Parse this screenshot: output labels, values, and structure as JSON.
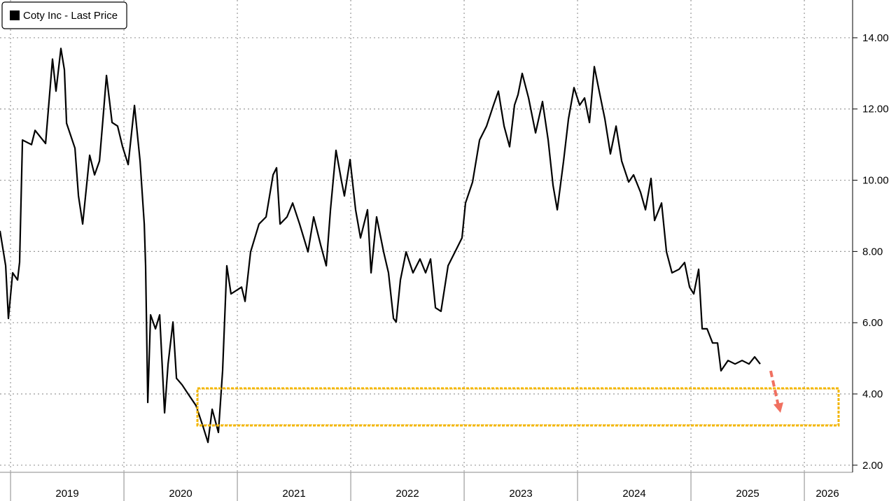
{
  "chart_data": {
    "type": "line",
    "series": [
      {
        "name": "Coty Inc - Last Price",
        "color": "#000000",
        "values": [
          8.58,
          7.6,
          6.12,
          7.4,
          7.2,
          7.7,
          11.13,
          11.0,
          11.4,
          11.03,
          13.4,
          12.5,
          13.7,
          13.1,
          11.6,
          10.9,
          9.56,
          8.77,
          10.7,
          10.15,
          10.54,
          11.72,
          12.94,
          11.62,
          11.52,
          10.94,
          10.44,
          12.1,
          10.54,
          8.77,
          7.6,
          3.76,
          6.22,
          5.83,
          6.22,
          3.47,
          4.84,
          6.02,
          4.44,
          4.26,
          3.96,
          3.67,
          3.08,
          2.64,
          3.57,
          2.92,
          4.65,
          7.6,
          6.81,
          7.0,
          6.6,
          7.99,
          8.77,
          8.97,
          10.15,
          10.35,
          8.77,
          8.97,
          9.36,
          8.77,
          7.99,
          8.97,
          8.18,
          7.6,
          9.17,
          10.84,
          9.95,
          9.56,
          10.58,
          9.17,
          8.38,
          9.17,
          7.4,
          8.97,
          7.99,
          7.4,
          6.12,
          6.02,
          7.2,
          7.99,
          7.4,
          7.79,
          7.4,
          7.79,
          6.42,
          6.32,
          7.6,
          7.99,
          8.38,
          9.36,
          9.95,
          11.13,
          11.52,
          12.11,
          12.5,
          11.52,
          10.94,
          12.11,
          12.4,
          13.0,
          12.31,
          11.33,
          12.21,
          11.13,
          9.85,
          9.17,
          10.54,
          11.72,
          12.6,
          12.11,
          12.31,
          11.62,
          13.19,
          12.5,
          11.72,
          10.74,
          11.52,
          10.54,
          9.95,
          10.15,
          9.66,
          9.17,
          10.05,
          8.87,
          9.36,
          7.99,
          7.4,
          7.5,
          7.69,
          7.0,
          6.81,
          7.5,
          5.83,
          5.83,
          5.43,
          5.43,
          4.65,
          4.94,
          4.84,
          4.94,
          4.84,
          5.04,
          4.84
        ]
      }
    ],
    "x": [
      2018.907,
      2018.957,
      2018.981,
      2019.019,
      2019.062,
      2019.08,
      2019.105,
      2019.185,
      2019.216,
      2019.309,
      2019.37,
      2019.401,
      2019.444,
      2019.475,
      2019.494,
      2019.568,
      2019.599,
      2019.636,
      2019.698,
      2019.741,
      2019.784,
      2019.815,
      2019.846,
      2019.895,
      2019.944,
      2019.988,
      2020.037,
      2020.093,
      2020.142,
      2020.179,
      2020.191,
      2020.21,
      2020.235,
      2020.278,
      2020.315,
      2020.358,
      2020.389,
      2020.432,
      2020.463,
      2020.512,
      2020.574,
      2020.636,
      2020.698,
      2020.741,
      2020.778,
      2020.833,
      2020.87,
      2020.907,
      2020.944,
      2021.037,
      2021.068,
      2021.117,
      2021.191,
      2021.253,
      2021.315,
      2021.346,
      2021.377,
      2021.438,
      2021.488,
      2021.549,
      2021.623,
      2021.673,
      2021.735,
      2021.784,
      2021.821,
      2021.87,
      2021.92,
      2021.944,
      2021.994,
      2022.043,
      2022.086,
      2022.148,
      2022.179,
      2022.228,
      2022.29,
      2022.333,
      2022.377,
      2022.401,
      2022.438,
      2022.488,
      2022.549,
      2022.611,
      2022.66,
      2022.704,
      2022.747,
      2022.796,
      2022.858,
      2022.92,
      2022.981,
      2023.012,
      2023.074,
      2023.136,
      2023.198,
      2023.259,
      2023.302,
      2023.352,
      2023.401,
      2023.444,
      2023.475,
      2023.512,
      2023.568,
      2023.63,
      2023.691,
      2023.741,
      2023.784,
      2023.821,
      2023.877,
      2023.92,
      2023.969,
      2024.019,
      2024.062,
      2024.105,
      2024.148,
      2024.191,
      2024.241,
      2024.29,
      2024.34,
      2024.389,
      2024.451,
      2024.494,
      2024.556,
      2024.599,
      2024.648,
      2024.679,
      2024.741,
      2024.784,
      2024.833,
      2024.895,
      2024.944,
      2024.988,
      2025.025,
      2025.068,
      2025.099,
      2025.142,
      2025.191,
      2025.235,
      2025.265,
      2025.327,
      2025.389,
      2025.451,
      2025.512,
      2025.562,
      2025.611
    ],
    "xlim": [
      2018.907,
      2026.407
    ],
    "xticks": [
      2019,
      2020,
      2021,
      2022,
      2023,
      2024,
      2025,
      2026
    ],
    "ylim": [
      1.8,
      15.06
    ],
    "yticks": [
      {
        "value": 2,
        "label": "2.00"
      },
      {
        "value": 4,
        "label": "4.00"
      },
      {
        "value": 6,
        "label": "6.00"
      },
      {
        "value": 8,
        "label": "8.00"
      },
      {
        "value": 10,
        "label": "10.00"
      },
      {
        "value": 12,
        "label": "12.00"
      },
      {
        "value": 14,
        "label": "14.00"
      }
    ],
    "grid": true,
    "legend": "top-left"
  }
}
